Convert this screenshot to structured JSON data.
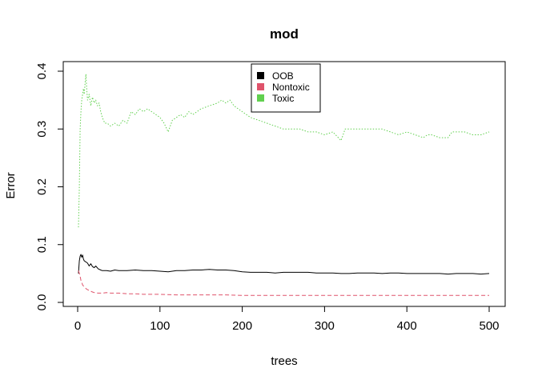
{
  "chart_data": {
    "type": "line",
    "title": "mod",
    "xlabel": "trees",
    "ylabel": "Error",
    "xlim": [
      0,
      500
    ],
    "ylim": [
      0,
      0.4
    ],
    "x_ticks": [
      0,
      100,
      200,
      300,
      400,
      500
    ],
    "x_tick_labels": [
      "0",
      "100",
      "200",
      "300",
      "400",
      "500"
    ],
    "y_ticks": [
      0.0,
      0.1,
      0.2,
      0.3,
      0.4
    ],
    "y_tick_labels": [
      "0.0",
      "0.1",
      "0.2",
      "0.3",
      "0.4"
    ],
    "grid": false,
    "legend_position": "top-center",
    "series": [
      {
        "name": "OOB",
        "color": "#000000",
        "line_style": "solid",
        "x": [
          1,
          2,
          3,
          4,
          5,
          6,
          7,
          8,
          10,
          12,
          14,
          16,
          18,
          20,
          22,
          25,
          28,
          30,
          35,
          40,
          45,
          50,
          60,
          70,
          80,
          90,
          100,
          110,
          120,
          130,
          140,
          150,
          160,
          170,
          180,
          190,
          200,
          210,
          220,
          230,
          240,
          250,
          260,
          270,
          280,
          290,
          300,
          310,
          320,
          330,
          340,
          350,
          360,
          370,
          380,
          390,
          400,
          410,
          420,
          430,
          440,
          450,
          460,
          470,
          480,
          490,
          500
        ],
        "values": [
          0.05,
          0.072,
          0.08,
          0.083,
          0.078,
          0.082,
          0.075,
          0.072,
          0.07,
          0.068,
          0.063,
          0.067,
          0.062,
          0.06,
          0.063,
          0.058,
          0.056,
          0.055,
          0.055,
          0.054,
          0.056,
          0.055,
          0.055,
          0.056,
          0.055,
          0.055,
          0.054,
          0.053,
          0.055,
          0.055,
          0.056,
          0.056,
          0.057,
          0.056,
          0.056,
          0.055,
          0.053,
          0.052,
          0.052,
          0.052,
          0.051,
          0.052,
          0.052,
          0.052,
          0.052,
          0.051,
          0.051,
          0.051,
          0.05,
          0.05,
          0.051,
          0.051,
          0.051,
          0.05,
          0.051,
          0.051,
          0.05,
          0.05,
          0.05,
          0.05,
          0.05,
          0.049,
          0.05,
          0.05,
          0.05,
          0.049,
          0.05
        ]
      },
      {
        "name": "Nontoxic",
        "color": "#DF536B",
        "line_style": "dashed",
        "x": [
          1,
          2,
          3,
          4,
          5,
          6,
          8,
          10,
          12,
          15,
          18,
          20,
          25,
          30,
          35,
          40,
          50,
          60,
          70,
          80,
          90,
          100,
          120,
          140,
          160,
          180,
          200,
          220,
          250,
          300,
          350,
          400,
          450,
          500
        ],
        "values": [
          0.055,
          0.05,
          0.045,
          0.038,
          0.035,
          0.03,
          0.027,
          0.024,
          0.022,
          0.02,
          0.018,
          0.017,
          0.016,
          0.016,
          0.017,
          0.016,
          0.016,
          0.015,
          0.015,
          0.014,
          0.014,
          0.014,
          0.013,
          0.013,
          0.013,
          0.013,
          0.012,
          0.012,
          0.012,
          0.012,
          0.012,
          0.012,
          0.012,
          0.012
        ]
      },
      {
        "name": "Toxic",
        "color": "#61D04F",
        "line_style": "dotted",
        "x": [
          1,
          2,
          3,
          4,
          5,
          6,
          7,
          8,
          9,
          10,
          11,
          12,
          14,
          16,
          18,
          20,
          22,
          24,
          26,
          28,
          30,
          33,
          36,
          40,
          45,
          50,
          55,
          60,
          65,
          70,
          75,
          80,
          85,
          90,
          95,
          100,
          105,
          110,
          115,
          120,
          125,
          130,
          135,
          140,
          150,
          160,
          170,
          175,
          180,
          185,
          190,
          195,
          200,
          210,
          220,
          230,
          240,
          250,
          260,
          270,
          280,
          290,
          300,
          310,
          320,
          325,
          330,
          340,
          350,
          360,
          370,
          380,
          390,
          400,
          410,
          420,
          425,
          430,
          440,
          450,
          455,
          460,
          470,
          480,
          490,
          500
        ],
        "values": [
          0.13,
          0.2,
          0.3,
          0.33,
          0.35,
          0.36,
          0.37,
          0.36,
          0.38,
          0.395,
          0.37,
          0.35,
          0.36,
          0.34,
          0.355,
          0.345,
          0.35,
          0.34,
          0.345,
          0.33,
          0.32,
          0.31,
          0.31,
          0.305,
          0.31,
          0.305,
          0.315,
          0.31,
          0.33,
          0.325,
          0.335,
          0.33,
          0.335,
          0.33,
          0.325,
          0.32,
          0.31,
          0.295,
          0.315,
          0.32,
          0.325,
          0.32,
          0.33,
          0.325,
          0.335,
          0.34,
          0.345,
          0.35,
          0.345,
          0.35,
          0.34,
          0.335,
          0.33,
          0.32,
          0.315,
          0.31,
          0.305,
          0.3,
          0.3,
          0.3,
          0.295,
          0.295,
          0.29,
          0.295,
          0.28,
          0.3,
          0.3,
          0.3,
          0.3,
          0.3,
          0.3,
          0.295,
          0.29,
          0.295,
          0.29,
          0.285,
          0.29,
          0.29,
          0.285,
          0.285,
          0.295,
          0.295,
          0.295,
          0.29,
          0.29,
          0.295
        ]
      }
    ]
  }
}
